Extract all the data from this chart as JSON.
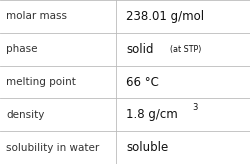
{
  "rows": [
    {
      "label": "molar mass",
      "value": "238.01 g/mol",
      "superscript": null,
      "small_suffix": null
    },
    {
      "label": "phase",
      "value": "solid",
      "superscript": null,
      "small_suffix": "(at STP)"
    },
    {
      "label": "melting point",
      "value": "66 °C",
      "superscript": null,
      "small_suffix": null
    },
    {
      "label": "density",
      "value": "1.8 g/cm",
      "superscript": "3",
      "small_suffix": null
    },
    {
      "label": "solubility in water",
      "value": "soluble",
      "superscript": null,
      "small_suffix": null
    }
  ],
  "bg_color": "#ffffff",
  "line_color": "#bbbbbb",
  "label_color": "#333333",
  "value_color": "#111111",
  "label_fontsize": 7.5,
  "value_fontsize": 8.5,
  "small_fontsize": 5.8,
  "sup_fontsize": 6.0,
  "col_split": 0.465,
  "figwidth": 2.5,
  "figheight": 1.64,
  "dpi": 100
}
